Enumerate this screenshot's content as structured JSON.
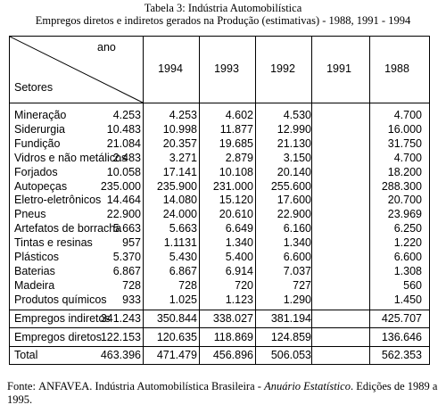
{
  "caption": {
    "title": "Tabela 3: Indústria Automobilística",
    "subtitle": "Empregos diretos e indiretos gerados na Produção (estimativas) - 1988, 1991 - 1994"
  },
  "table": {
    "corner_top": "ano",
    "corner_bottom": "Setores",
    "years": [
      "1994",
      "1993",
      "1992",
      "1991",
      "1988"
    ],
    "sectors": [
      {
        "label": "Mineração",
        "values": [
          "4.253",
          "4.253",
          "4.602",
          "4.530",
          "4.700"
        ]
      },
      {
        "label": "Siderurgia",
        "values": [
          "10.483",
          "10.998",
          "11.877",
          "12.990",
          "16.000"
        ]
      },
      {
        "label": "Fundição",
        "values": [
          "21.084",
          "20.357",
          "19.685",
          "21.130",
          "31.750"
        ]
      },
      {
        "label": "Vidros e não metálicos",
        "values": [
          "2.483",
          "3.271",
          "2.879",
          "3.150",
          "4.700"
        ]
      },
      {
        "label": "Forjados",
        "values": [
          "10.058",
          "17.141",
          "10.108",
          "20.140",
          "18.200"
        ]
      },
      {
        "label": "Autopeças",
        "values": [
          "235.000",
          "235.900",
          "231.000",
          "255.600",
          "288.300"
        ]
      },
      {
        "label": "Eletro-eletrônicos",
        "values": [
          "14.464",
          "14.080",
          "15.120",
          "17.600",
          "20.700"
        ]
      },
      {
        "label": "Pneus",
        "values": [
          "22.900",
          "24.000",
          "20.610",
          "22.900",
          "23.969"
        ]
      },
      {
        "label": "Artefatos de borracha",
        "values": [
          "5.663",
          "5.663",
          "6.649",
          "6.160",
          "6.250"
        ]
      },
      {
        "label": "Tintas e resinas",
        "values": [
          "957",
          "1.1131",
          "1.340",
          "1.340",
          "1.220"
        ]
      },
      {
        "label": "Plásticos",
        "values": [
          "5.370",
          "5.430",
          "5.400",
          "6.600",
          "6.600"
        ]
      },
      {
        "label": "Baterias",
        "values": [
          "6.867",
          "6.867",
          "6.914",
          "7.037",
          "1.308"
        ]
      },
      {
        "label": "Madeira",
        "values": [
          "728",
          "728",
          "720",
          "727",
          "560"
        ]
      },
      {
        "label": "Produtos químicos",
        "values": [
          "933",
          "1.025",
          "1.123",
          "1.290",
          "1.450"
        ]
      }
    ],
    "indirect": {
      "label": "Empregos indiretos",
      "values": [
        "341.243",
        "350.844",
        "338.027",
        "381.194",
        "425.707"
      ]
    },
    "direct": {
      "label": "Empregos diretos",
      "values": [
        "122.153",
        "120.635",
        "118.869",
        "124.859",
        "136.646"
      ]
    },
    "total": {
      "label": "Total",
      "values": [
        "463.396",
        "471.479",
        "456.896",
        "506.053",
        "562.353"
      ]
    }
  },
  "source": {
    "prefix": "Fonte: ",
    "org": "ANFAVEA",
    "middle": ". Indústria Automobilística Brasileira - ",
    "publication": "Anuário Estatístico",
    "suffix": ". Edições de 1989 a 1995."
  }
}
